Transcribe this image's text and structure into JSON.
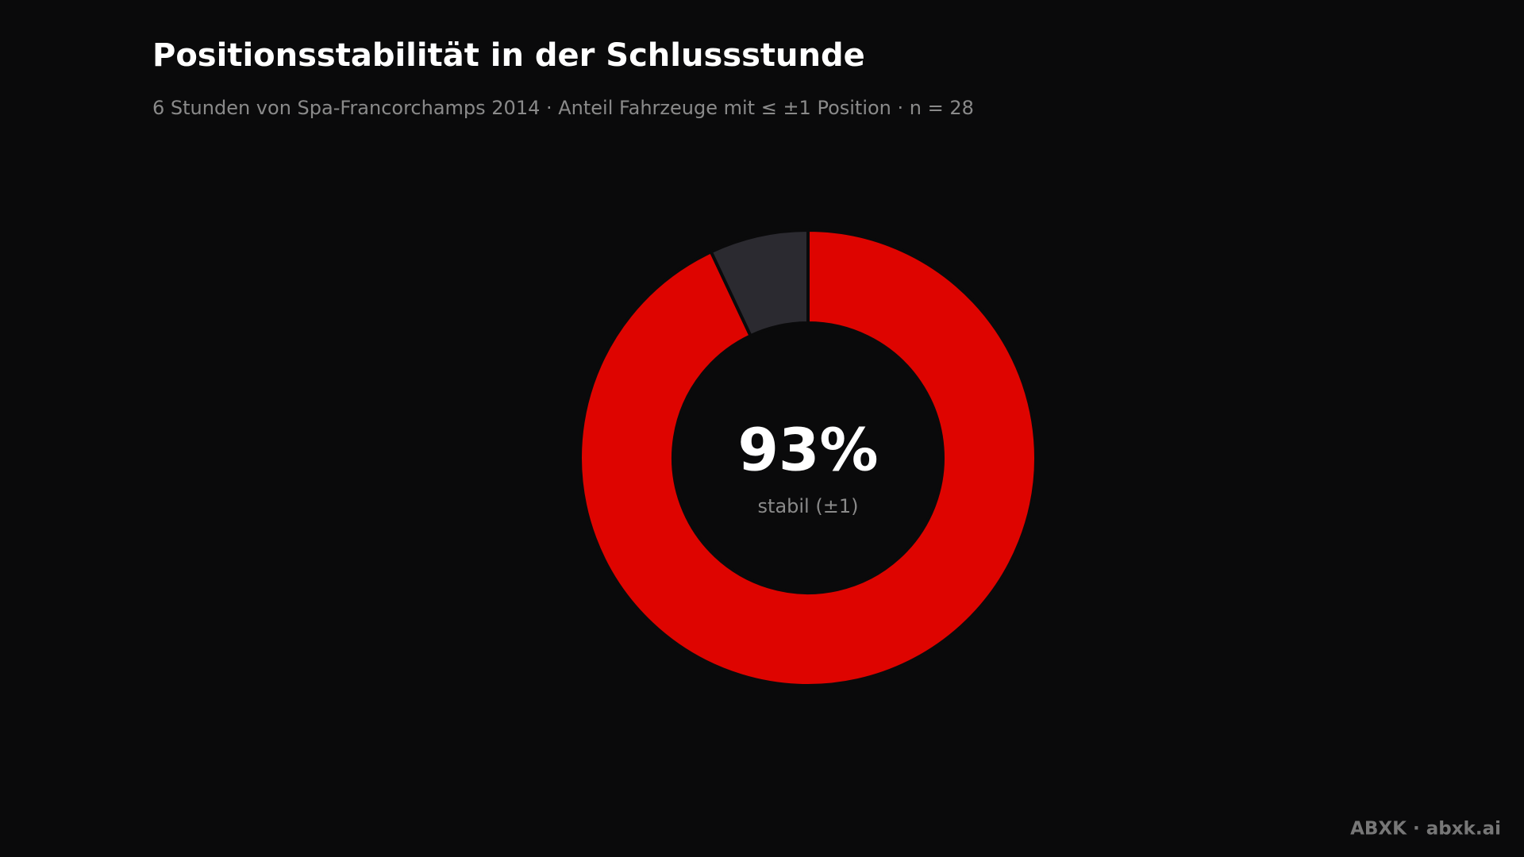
{
  "chart_data": {
    "type": "donut",
    "title": "Positionsstabilität in der Schlussstunde",
    "subtitle": "6 Stunden von Spa-Francorchamps 2014 · Anteil Fahrzeuge mit ≤ ±1 Position · n = 28",
    "values": [
      93,
      7
    ],
    "value_labels": [
      "93%",
      null
    ],
    "colors": [
      "#de0400",
      "#2b2a30"
    ],
    "center_caption": "stabil (±1)"
  },
  "footer": "ABXK · abxk.ai"
}
